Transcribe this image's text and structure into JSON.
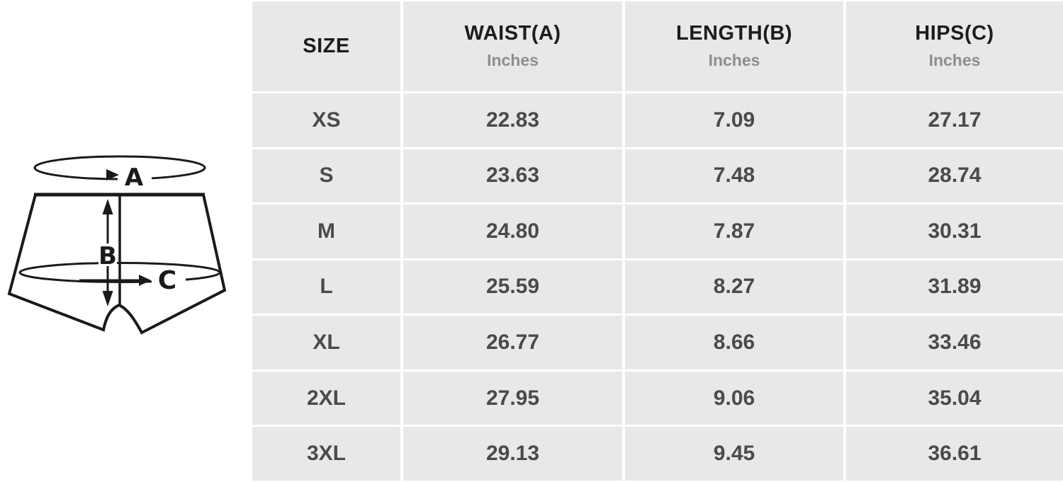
{
  "diagram": {
    "labels": {
      "a": "A",
      "b": "B",
      "c": "C"
    }
  },
  "table": {
    "columns": [
      {
        "label": "SIZE",
        "sublabel": ""
      },
      {
        "label": "WAIST(A)",
        "sublabel": "Inches"
      },
      {
        "label": "LENGTH(B)",
        "sublabel": "Inches"
      },
      {
        "label": "HIPS(C)",
        "sublabel": "Inches"
      }
    ],
    "rows": [
      {
        "size": "XS",
        "waist": "22.83",
        "length": "7.09",
        "hips": "27.17"
      },
      {
        "size": "S",
        "waist": "23.63",
        "length": "7.48",
        "hips": "28.74"
      },
      {
        "size": "M",
        "waist": "24.80",
        "length": "7.87",
        "hips": "30.31"
      },
      {
        "size": "L",
        "waist": "25.59",
        "length": "8.27",
        "hips": "31.89"
      },
      {
        "size": "XL",
        "waist": "26.77",
        "length": "8.66",
        "hips": "33.46"
      },
      {
        "size": "2XL",
        "waist": "27.95",
        "length": "9.06",
        "hips": "35.04"
      },
      {
        "size": "3XL",
        "waist": "29.13",
        "length": "9.45",
        "hips": "36.61"
      }
    ]
  },
  "chart_data": {
    "type": "table",
    "columns": [
      "SIZE",
      "WAIST(A) Inches",
      "LENGTH(B) Inches",
      "HIPS(C) Inches"
    ],
    "categories": [
      "XS",
      "S",
      "M",
      "L",
      "XL",
      "2XL",
      "3XL"
    ],
    "series": [
      {
        "name": "WAIST(A) Inches",
        "values": [
          22.83,
          23.63,
          24.8,
          25.59,
          26.77,
          27.95,
          29.13
        ]
      },
      {
        "name": "LENGTH(B) Inches",
        "values": [
          7.09,
          7.48,
          7.87,
          8.27,
          8.66,
          9.06,
          9.45
        ]
      },
      {
        "name": "HIPS(C) Inches",
        "values": [
          27.17,
          28.74,
          30.31,
          31.89,
          33.46,
          35.04,
          36.61
        ]
      }
    ]
  },
  "colors": {
    "cell_background": "#e9e8e6",
    "separator": "#ffffff",
    "header_text": "#1c1c1c",
    "subheader_text": "#8d8d8d",
    "value_text": "#4a4a4a",
    "line_art": "#1a1a1a"
  }
}
